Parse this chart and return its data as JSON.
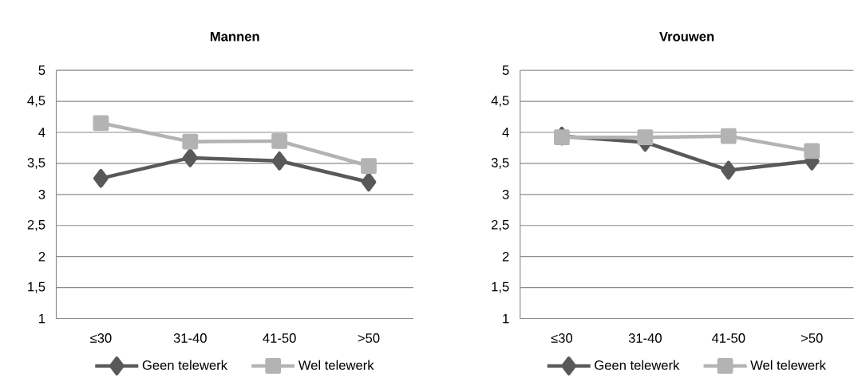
{
  "chart_data": [
    {
      "type": "line",
      "title": "Mannen",
      "categories": [
        "≤30",
        "31-40",
        "41-50",
        ">50"
      ],
      "series": [
        {
          "name": "Geen telewerk",
          "color": "#595959",
          "marker": "diamond",
          "values": [
            3.26,
            3.59,
            3.54,
            3.2
          ]
        },
        {
          "name": "Wel telewerk",
          "color": "#b3b3b3",
          "marker": "square",
          "values": [
            4.15,
            3.85,
            3.86,
            3.46
          ]
        }
      ],
      "ylim": [
        1,
        5
      ],
      "yticks": [
        1,
        {
          "value": 1.5,
          "label": "1,5"
        },
        2,
        {
          "value": 2.5,
          "label": "2,5"
        },
        3,
        {
          "value": 3.5,
          "label": "3,5"
        },
        4,
        {
          "value": 4.5,
          "label": "4,5"
        },
        5
      ],
      "grid": "y",
      "legend": "bottom"
    },
    {
      "type": "line",
      "title": "Vrouwen",
      "categories": [
        "≤30",
        "31-40",
        "41-50",
        ">50"
      ],
      "series": [
        {
          "name": "Geen telewerk",
          "color": "#595959",
          "marker": "diamond",
          "values": [
            3.94,
            3.84,
            3.39,
            3.54
          ]
        },
        {
          "name": "Wel telewerk",
          "color": "#b3b3b3",
          "marker": "square",
          "values": [
            3.92,
            3.92,
            3.94,
            3.7
          ]
        }
      ],
      "ylim": [
        1,
        5
      ],
      "yticks": [
        1,
        {
          "value": 1.5,
          "label": "1,5"
        },
        2,
        {
          "value": 2.5,
          "label": "2,5"
        },
        3,
        {
          "value": 3.5,
          "label": "3,5"
        },
        4,
        {
          "value": 4.5,
          "label": "4,5"
        },
        5
      ],
      "grid": "y",
      "legend": "bottom"
    }
  ]
}
